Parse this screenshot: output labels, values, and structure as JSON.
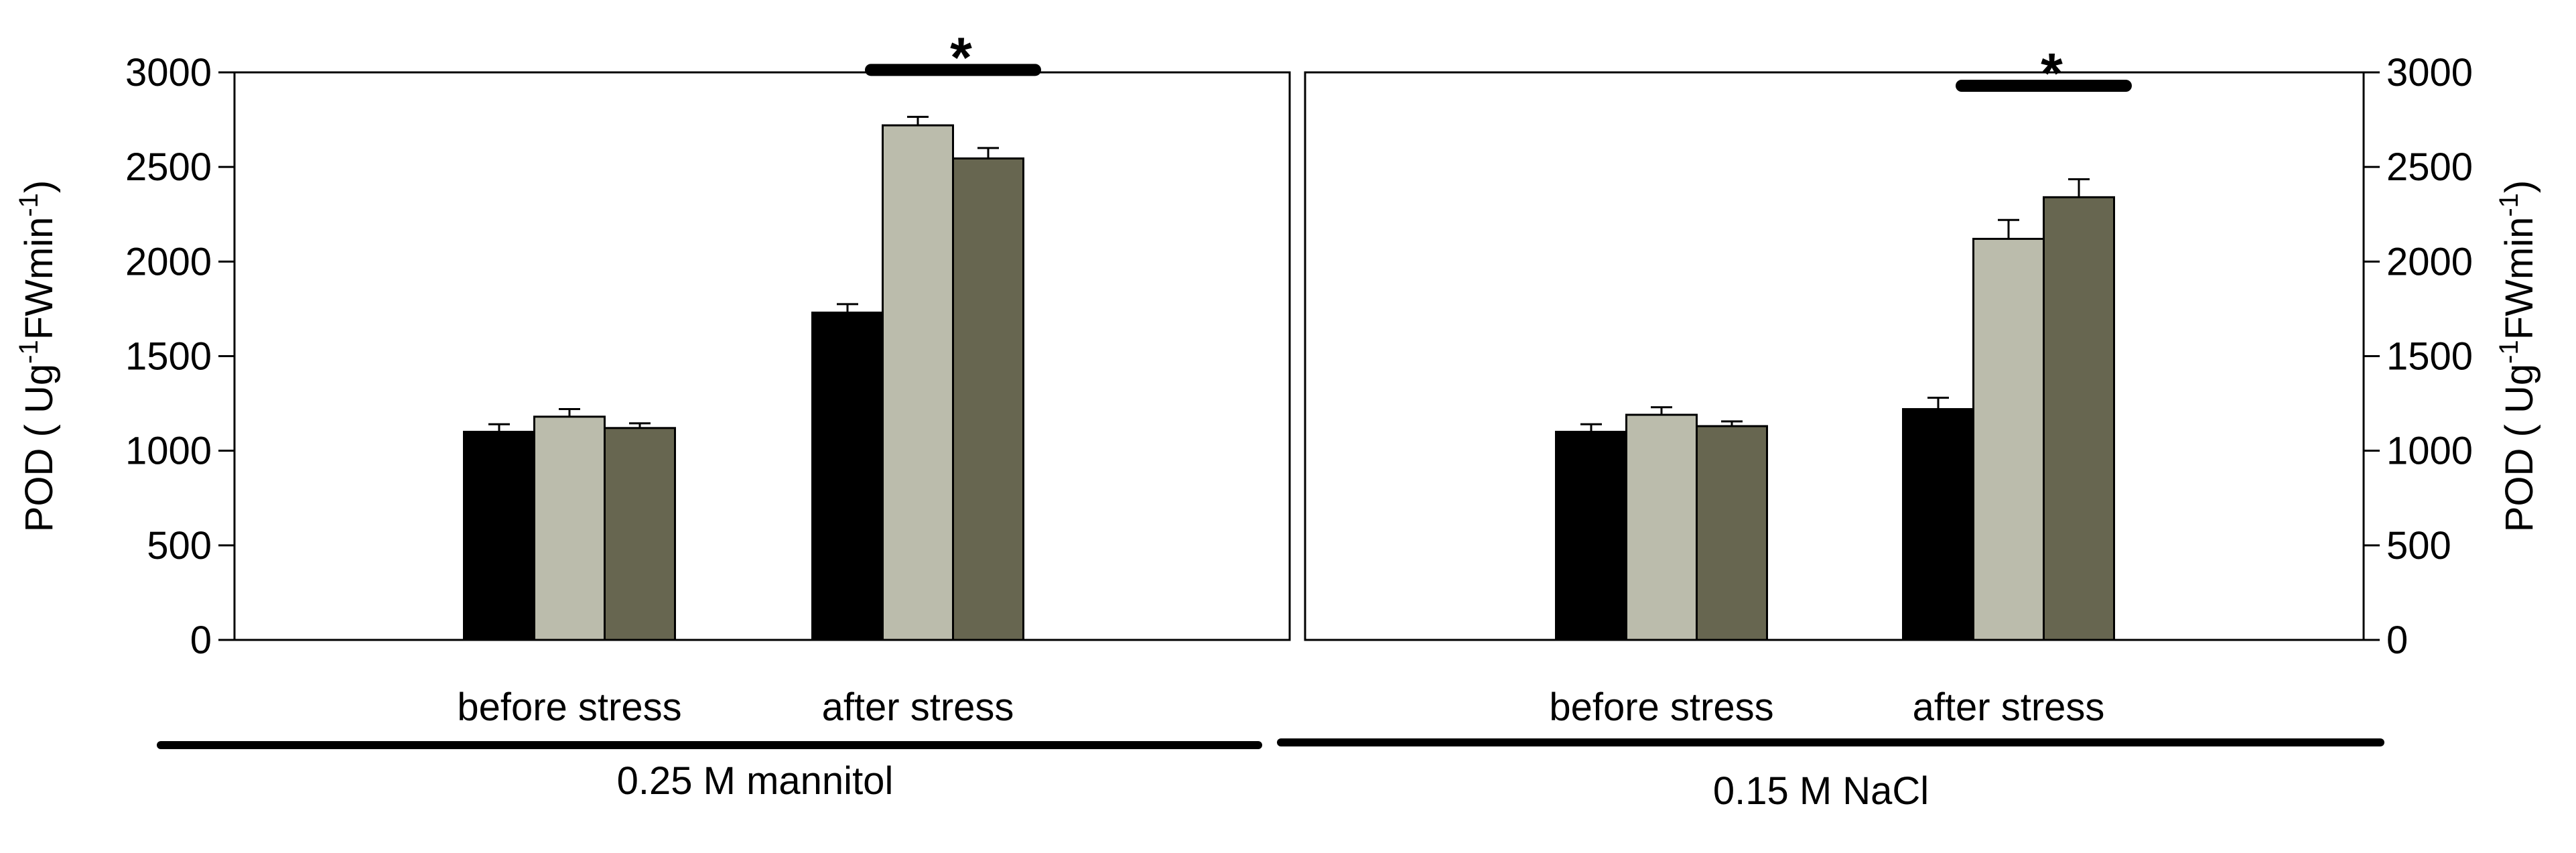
{
  "chart_data": [
    {
      "type": "bar",
      "panel": "left",
      "condition": "0.25 M mannitol",
      "categories": [
        "before stress",
        "after stress"
      ],
      "series": [
        {
          "name": "series 1",
          "color": "#000000",
          "values": [
            1100,
            1730
          ],
          "errors": [
            40,
            45
          ]
        },
        {
          "name": "series 2",
          "color": "#bbbcac",
          "values": [
            1180,
            2720
          ],
          "errors": [
            40,
            45
          ]
        },
        {
          "name": "series 3",
          "color": "#676650",
          "values": [
            1120,
            2545
          ],
          "errors": [
            25,
            55
          ]
        }
      ],
      "ylim": [
        0,
        3000
      ],
      "yticks": [
        "0",
        "500",
        "1000",
        "1500",
        "2000",
        "2500",
        "3000"
      ],
      "ylabel": {
        "main": "POD ( Ug",
        "sup1": "-1",
        "mid": "FWmin",
        "sup2": "-1",
        "end": ")"
      },
      "axis_side": "left",
      "significance": {
        "label": "*",
        "category": "after stress",
        "from_series": 1,
        "to_series": 2
      }
    },
    {
      "type": "bar",
      "panel": "right",
      "condition": "0.15 M NaCl",
      "categories": [
        "before stress",
        "after stress"
      ],
      "series": [
        {
          "name": "series 1",
          "color": "#000000",
          "values": [
            1100,
            1220
          ],
          "errors": [
            40,
            60
          ]
        },
        {
          "name": "series 2",
          "color": "#bbbcac",
          "values": [
            1190,
            2120
          ],
          "errors": [
            40,
            100
          ]
        },
        {
          "name": "series 3",
          "color": "#676650",
          "values": [
            1130,
            2340
          ],
          "errors": [
            25,
            95
          ]
        }
      ],
      "ylim": [
        0,
        3000
      ],
      "yticks": [
        "0",
        "500",
        "1000",
        "1500",
        "2000",
        "2500",
        "3000"
      ],
      "ylabel": {
        "main": "POD ( Ug",
        "sup1": "-1",
        "mid": "FWmin",
        "sup2": "-1",
        "end": ")"
      },
      "axis_side": "right",
      "significance": {
        "label": "*",
        "category": "after stress",
        "from_series": 1,
        "to_series": 2
      }
    }
  ]
}
